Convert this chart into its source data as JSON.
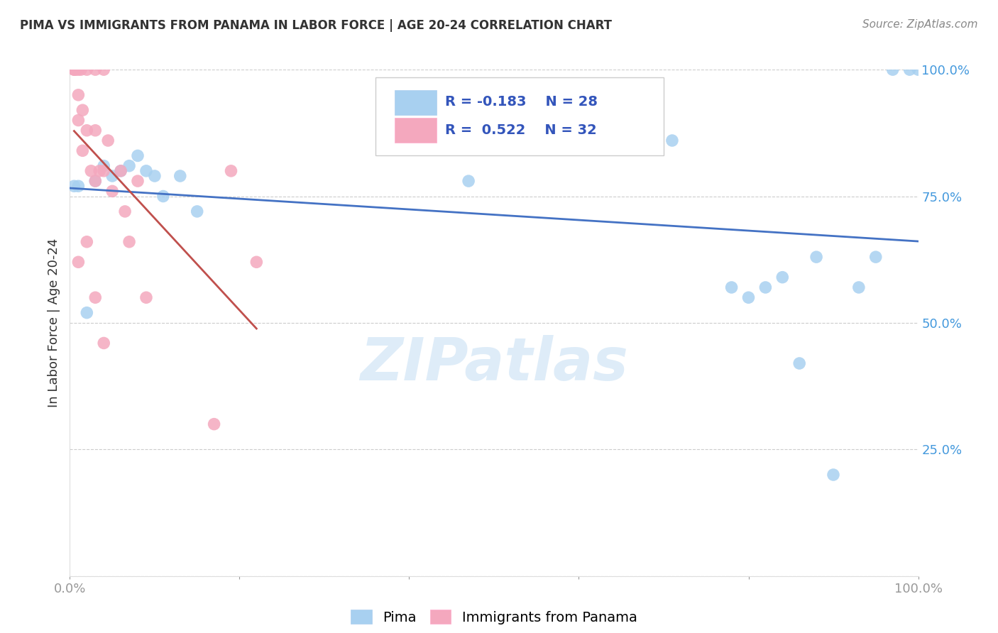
{
  "title": "PIMA VS IMMIGRANTS FROM PANAMA IN LABOR FORCE | AGE 20-24 CORRELATION CHART",
  "source": "Source: ZipAtlas.com",
  "ylabel": "In Labor Force | Age 20-24",
  "xlim": [
    0.0,
    1.0
  ],
  "ylim": [
    0.0,
    1.0
  ],
  "yticks": [
    0.0,
    0.25,
    0.5,
    0.75,
    1.0
  ],
  "ytick_labels": [
    "",
    "25.0%",
    "50.0%",
    "75.0%",
    "100.0%"
  ],
  "legend_label1": "Pima",
  "legend_label2": "Immigrants from Panama",
  "R1": -0.183,
  "N1": 28,
  "R2": 0.522,
  "N2": 32,
  "blue_color": "#A8D0F0",
  "pink_color": "#F4A8BE",
  "trendline_blue": "#4472C4",
  "trendline_pink": "#C0504D",
  "watermark": "ZIPatlas",
  "blue_scatter_x": [
    0.005,
    0.01,
    0.02,
    0.03,
    0.04,
    0.05,
    0.06,
    0.07,
    0.08,
    0.09,
    0.1,
    0.11,
    0.13,
    0.15,
    0.47,
    0.71,
    0.78,
    0.8,
    0.82,
    0.84,
    0.86,
    0.88,
    0.9,
    0.93,
    0.95,
    0.97,
    0.99,
    1.0
  ],
  "blue_scatter_y": [
    0.77,
    0.77,
    0.52,
    0.78,
    0.81,
    0.79,
    0.8,
    0.81,
    0.83,
    0.8,
    0.79,
    0.75,
    0.79,
    0.72,
    0.78,
    0.86,
    0.57,
    0.55,
    0.57,
    0.59,
    0.42,
    0.63,
    0.2,
    0.57,
    0.63,
    1.0,
    1.0,
    1.0
  ],
  "pink_scatter_x": [
    0.005,
    0.005,
    0.007,
    0.01,
    0.01,
    0.01,
    0.01,
    0.013,
    0.015,
    0.015,
    0.02,
    0.02,
    0.02,
    0.025,
    0.03,
    0.03,
    0.03,
    0.03,
    0.035,
    0.04,
    0.04,
    0.04,
    0.045,
    0.05,
    0.06,
    0.065,
    0.07,
    0.08,
    0.09,
    0.17,
    0.19,
    0.22
  ],
  "pink_scatter_y": [
    1.0,
    1.0,
    1.0,
    1.0,
    0.95,
    0.9,
    0.62,
    1.0,
    0.92,
    0.84,
    1.0,
    0.88,
    0.66,
    0.8,
    1.0,
    0.88,
    0.78,
    0.55,
    0.8,
    1.0,
    0.8,
    0.46,
    0.86,
    0.76,
    0.8,
    0.72,
    0.66,
    0.78,
    0.55,
    0.3,
    0.8,
    0.62
  ]
}
